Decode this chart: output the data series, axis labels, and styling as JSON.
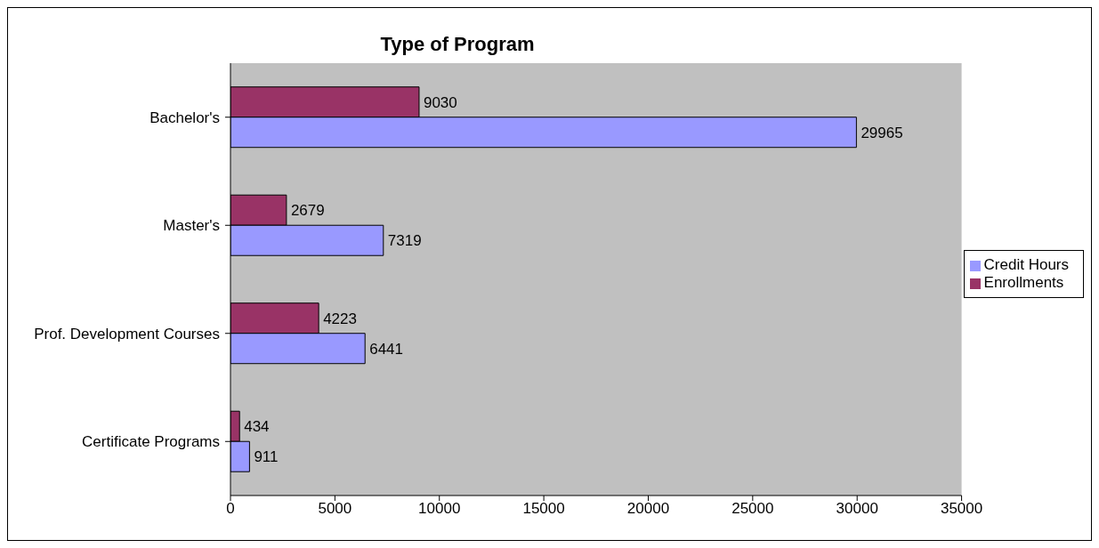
{
  "chart_data": {
    "type": "bar",
    "orientation": "horizontal",
    "title": "Type of Program",
    "categories": [
      "Bachelor's",
      "Master's",
      "Prof. Development Courses",
      "Certificate Programs"
    ],
    "series": [
      {
        "name": "Enrollments",
        "color": "#993366",
        "values": [
          9030,
          2679,
          4223,
          434
        ]
      },
      {
        "name": "Credit Hours",
        "color": "#9999ff",
        "values": [
          29965,
          7319,
          6441,
          911
        ]
      }
    ],
    "xlim": [
      0,
      35000
    ],
    "xticks": [
      0,
      5000,
      10000,
      15000,
      20000,
      25000,
      30000,
      35000
    ],
    "grid": false,
    "legend": "right",
    "data_labels": true
  }
}
